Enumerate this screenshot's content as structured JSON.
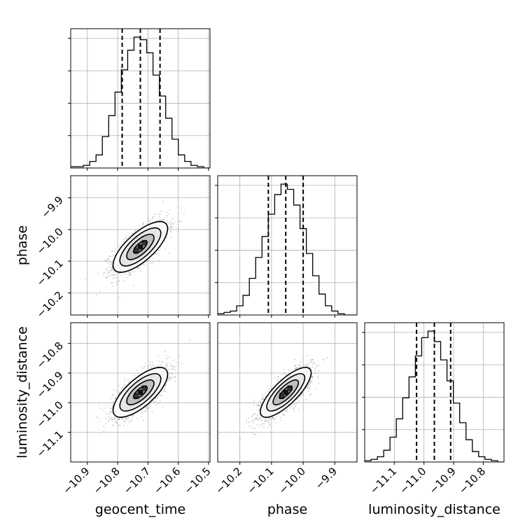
{
  "chart_data": {
    "type": "corner",
    "parameters": [
      "geocent_time",
      "phase",
      "luminosity_distance"
    ],
    "axis_ranges": {
      "geocent_time": [
        -10.955,
        -10.495
      ],
      "phase": [
        -10.27,
        -9.83
      ],
      "luminosity_distance": [
        -11.2,
        -10.73
      ]
    },
    "ticks": {
      "geocent_time": [
        -10.9,
        -10.8,
        -10.7,
        -10.6,
        -10.5
      ],
      "phase": [
        -10.2,
        -10.1,
        -10.0,
        -9.9
      ],
      "luminosity_distance": [
        -11.1,
        -11.0,
        -10.9,
        -10.8
      ]
    },
    "tick_labels": {
      "geocent_time": [
        "−10.9",
        "−10.8",
        "−10.7",
        "−10.6",
        "−10.5"
      ],
      "phase": [
        "−10.2",
        "−10.1",
        "−10.0",
        "−9.9"
      ],
      "luminosity_distance": [
        "−11.1",
        "−11.0",
        "−10.9",
        "−10.8"
      ]
    },
    "quantiles": {
      "geocent_time": [
        -10.785,
        -10.725,
        -10.66
      ],
      "phase": [
        -10.11,
        -10.055,
        -10.0
      ],
      "luminosity_distance": [
        -11.025,
        -10.965,
        -10.91
      ]
    },
    "histograms": {
      "geocent_time": {
        "range": [
          -10.955,
          -10.495
        ],
        "counts": [
          1,
          1,
          2,
          5,
          10,
          24,
          40,
          58,
          75,
          90,
          100,
          98,
          88,
          71,
          55,
          38,
          22,
          10,
          5,
          2,
          1,
          0
        ]
      },
      "phase": {
        "range": [
          -10.27,
          -9.83
        ],
        "counts": [
          1,
          2,
          3,
          7,
          15,
          28,
          44,
          60,
          77,
          92,
          100,
          96,
          84,
          66,
          47,
          30,
          16,
          7,
          3,
          1,
          0,
          0
        ]
      },
      "luminosity_distance": {
        "range": [
          -11.2,
          -10.73
        ],
        "counts": [
          1,
          2,
          4,
          9,
          19,
          33,
          49,
          65,
          81,
          95,
          100,
          92,
          78,
          62,
          45,
          30,
          17,
          8,
          4,
          2,
          1,
          0
        ]
      }
    },
    "posterior": {
      "means": {
        "geocent_time": -10.725,
        "phase": -10.055,
        "luminosity_distance": -10.965
      },
      "stds": {
        "geocent_time": 0.045,
        "phase": 0.04,
        "luminosity_distance": 0.042
      },
      "correlations": {
        "geocent_time|phase": 0.72,
        "geocent_time|luminosity_distance": 0.72,
        "phase|luminosity_distance": 0.78
      },
      "contour_sigma_levels": [
        0.5,
        1.0,
        1.5,
        2.0
      ]
    },
    "grid": true
  }
}
